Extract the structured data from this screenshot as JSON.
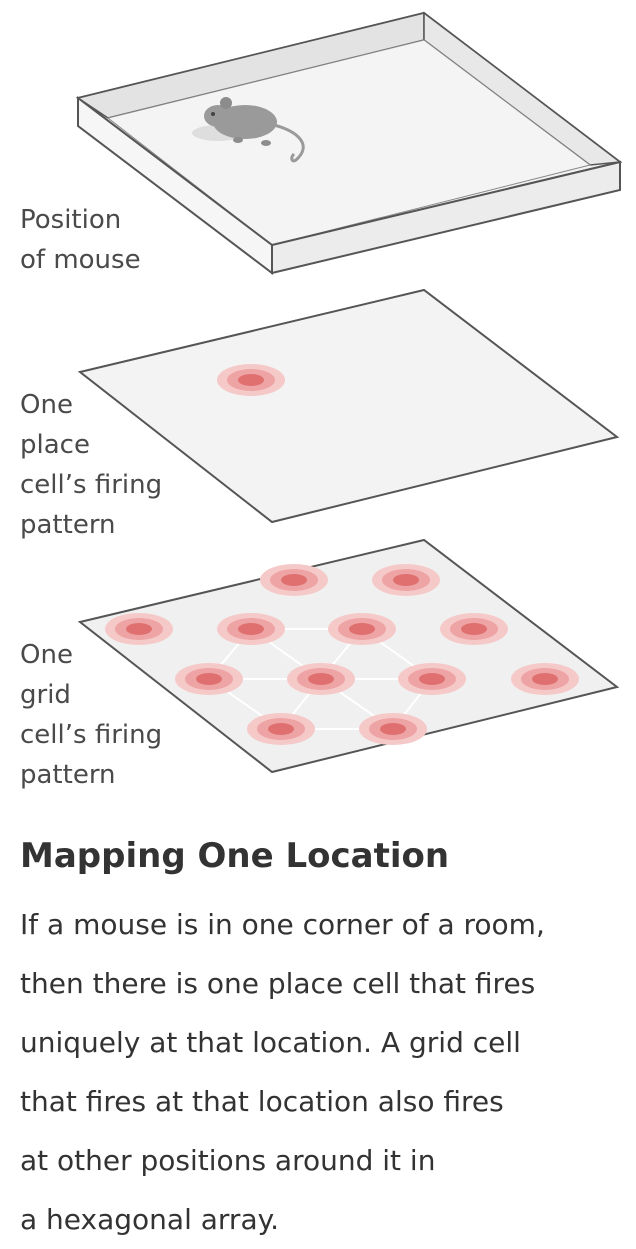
{
  "layers": [
    {
      "label_lines": [
        "Position",
        "of mouse"
      ]
    },
    {
      "label_lines": [
        "One",
        "place",
        "cell’s firing",
        "pattern"
      ]
    },
    {
      "label_lines": [
        "One",
        "grid",
        "cell’s firing",
        "pattern"
      ]
    }
  ],
  "caption": {
    "title": "Mapping One Location",
    "body_lines": [
      "If a mouse is in one corner of a room,",
      "then there is one place cell that fires",
      "uniquely at that location. A grid cell",
      "that fires at that location also fires",
      "at other positions around it in",
      "a hexagonal array."
    ]
  },
  "colors": {
    "outline": "#555555",
    "surface": "#f0f0f0",
    "firing_outer": "#f6c9c9",
    "firing_mid": "#eea4a4",
    "firing_core": "#e07070",
    "mouse": "#9a9a9a",
    "hex_lines": "#ffffff"
  },
  "icons": [
    "mouse-icon"
  ]
}
